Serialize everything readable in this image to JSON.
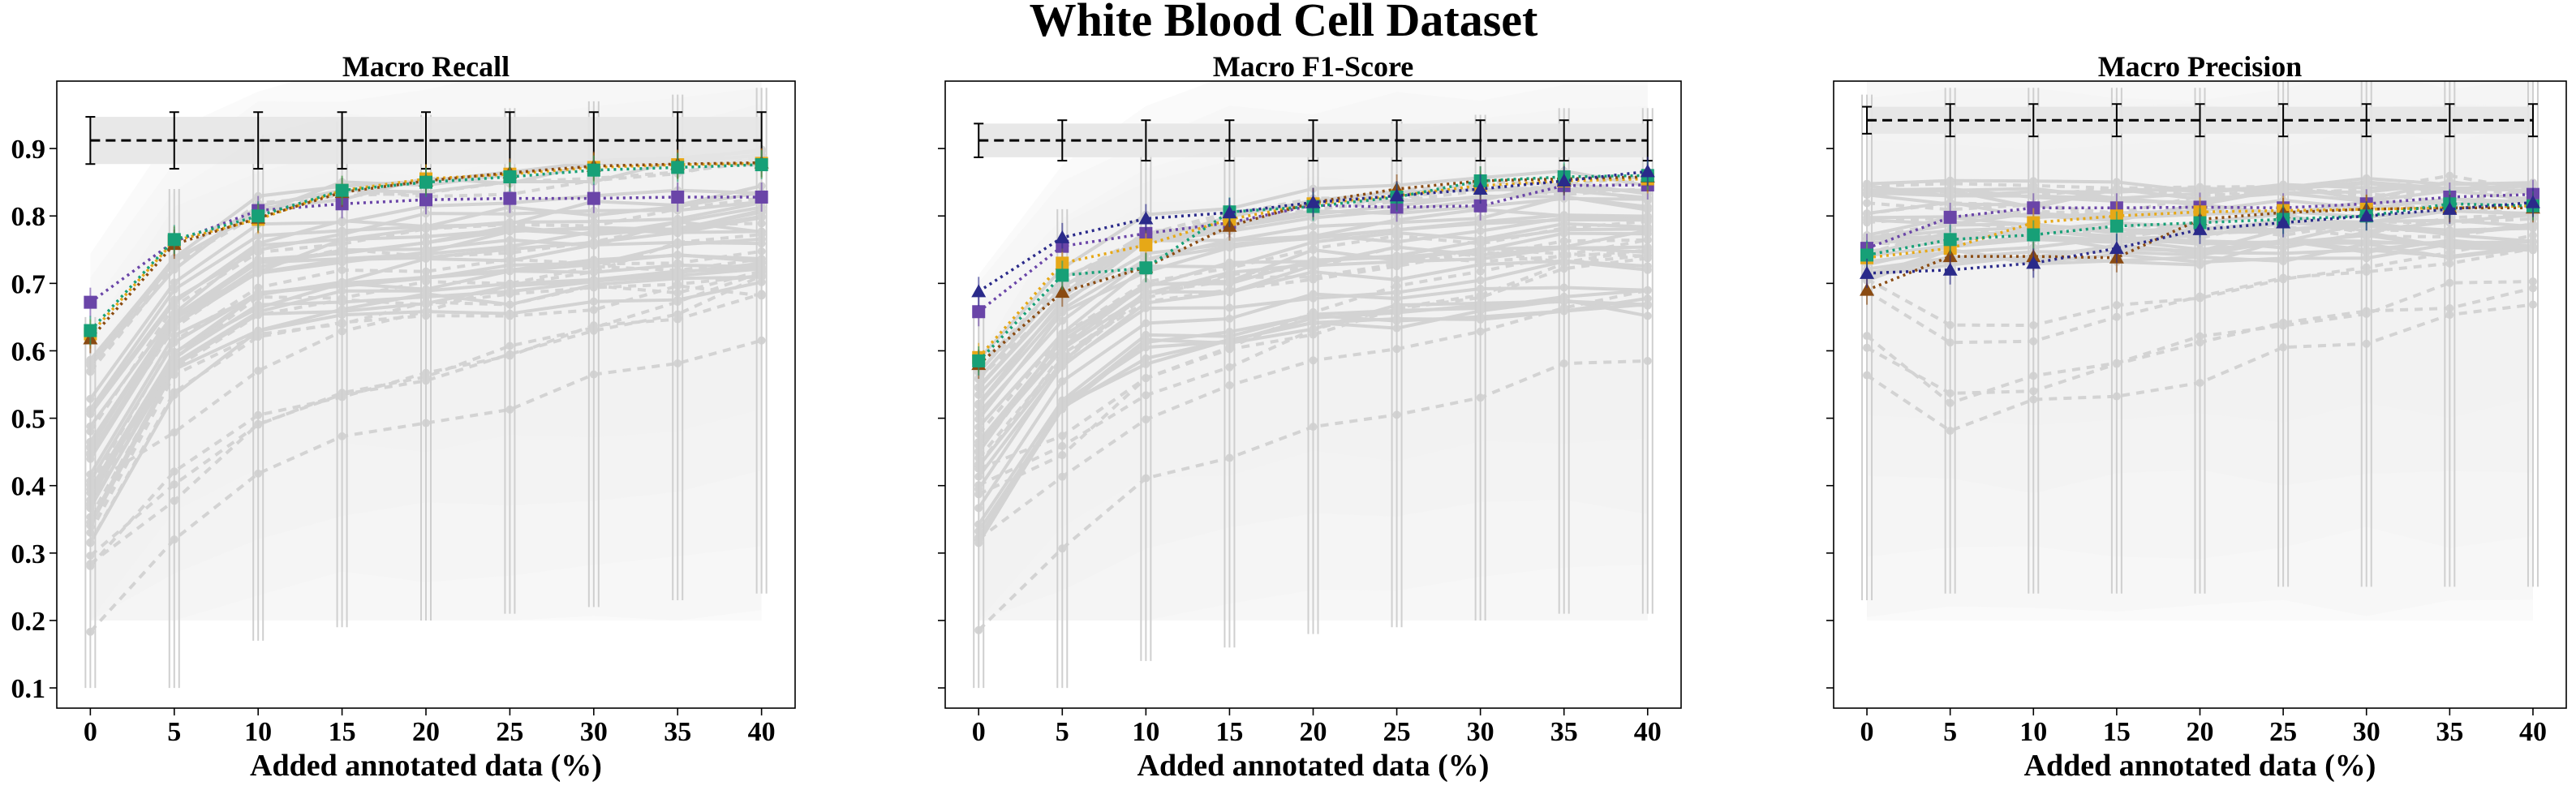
{
  "figure": {
    "title": "White Blood Cell Dataset"
  },
  "chart_data": [
    {
      "type": "line",
      "title": "Macro Recall",
      "xlabel": "Added annotated data (%)",
      "ylabel": "",
      "x": [
        0,
        5,
        10,
        15,
        20,
        25,
        30,
        35,
        40
      ],
      "x_ticks": [
        "0",
        "5",
        "10",
        "15",
        "20",
        "25",
        "30",
        "35",
        "40"
      ],
      "ylim": [
        0.07,
        1.0
      ],
      "y_ticks": [
        "0.1",
        "0.2",
        "0.3",
        "0.4",
        "0.5",
        "0.6",
        "0.7",
        "0.8",
        "0.9"
      ],
      "show_y_tick_labels": true,
      "reference": {
        "value": 0.912,
        "error": 0.035
      },
      "series": [
        {
          "color": "#6a45a8",
          "marker": "square",
          "values": [
            0.672,
            0.762,
            0.808,
            0.818,
            0.824,
            0.826,
            0.826,
            0.828,
            0.828
          ]
        },
        {
          "color": "#e6a817",
          "marker": "square",
          "values": [
            0.625,
            0.763,
            0.795,
            0.838,
            0.855,
            0.862,
            0.872,
            0.876,
            0.878
          ]
        },
        {
          "color": "#8a4b12",
          "marker": "triangle",
          "values": [
            0.618,
            0.758,
            0.797,
            0.835,
            0.852,
            0.864,
            0.874,
            0.877,
            0.879
          ]
        },
        {
          "color": "#17a077",
          "marker": "square",
          "values": [
            0.63,
            0.765,
            0.8,
            0.838,
            0.85,
            0.858,
            0.868,
            0.872,
            0.876
          ]
        }
      ]
    },
    {
      "type": "line",
      "title": "Macro F1-Score",
      "xlabel": "Added annotated data (%)",
      "ylabel": "",
      "x": [
        0,
        5,
        10,
        15,
        20,
        25,
        30,
        35,
        40
      ],
      "x_ticks": [
        "0",
        "5",
        "10",
        "15",
        "20",
        "25",
        "30",
        "35",
        "40"
      ],
      "ylim": [
        0.07,
        1.0
      ],
      "y_ticks": [],
      "show_y_tick_labels": false,
      "reference": {
        "value": 0.912,
        "error": 0.025
      },
      "series": [
        {
          "color": "#6a45a8",
          "marker": "square",
          "values": [
            0.658,
            0.755,
            0.774,
            0.79,
            0.816,
            0.813,
            0.815,
            0.845,
            0.846
          ]
        },
        {
          "color": "#e6a817",
          "marker": "square",
          "values": [
            0.59,
            0.73,
            0.757,
            0.795,
            0.818,
            0.83,
            0.845,
            0.852,
            0.855
          ]
        },
        {
          "color": "#8a4b12",
          "marker": "triangle",
          "values": [
            0.58,
            0.687,
            0.724,
            0.785,
            0.82,
            0.84,
            0.852,
            0.855,
            0.858
          ]
        },
        {
          "color": "#17a077",
          "marker": "square",
          "values": [
            0.585,
            0.712,
            0.723,
            0.806,
            0.814,
            0.828,
            0.852,
            0.858,
            0.86
          ]
        },
        {
          "color": "#2a2a8a",
          "marker": "triangle",
          "values": [
            0.688,
            0.768,
            0.796,
            0.805,
            0.82,
            0.83,
            0.84,
            0.852,
            0.866
          ]
        }
      ]
    },
    {
      "type": "line",
      "title": "Macro Precision",
      "xlabel": "Added annotated data (%)",
      "ylabel": "",
      "x": [
        0,
        5,
        10,
        15,
        20,
        25,
        30,
        35,
        40
      ],
      "x_ticks": [
        "0",
        "5",
        "10",
        "15",
        "20",
        "25",
        "30",
        "35",
        "40"
      ],
      "ylim": [
        0.07,
        1.0
      ],
      "y_ticks": [],
      "show_y_tick_labels": false,
      "reference": {
        "value": 0.942,
        "error": 0.02
      },
      "series": [
        {
          "color": "#6a45a8",
          "marker": "square",
          "values": [
            0.752,
            0.798,
            0.812,
            0.812,
            0.813,
            0.812,
            0.818,
            0.828,
            0.832
          ]
        },
        {
          "color": "#e6a817",
          "marker": "square",
          "values": [
            0.738,
            0.752,
            0.79,
            0.8,
            0.806,
            0.808,
            0.81,
            0.812,
            0.815
          ]
        },
        {
          "color": "#8a4b12",
          "marker": "triangle",
          "values": [
            0.69,
            0.74,
            0.74,
            0.738,
            0.795,
            0.805,
            0.81,
            0.812,
            0.812
          ]
        },
        {
          "color": "#17a077",
          "marker": "square",
          "values": [
            0.742,
            0.765,
            0.772,
            0.785,
            0.79,
            0.795,
            0.8,
            0.818,
            0.815
          ]
        },
        {
          "color": "#2a2a8a",
          "marker": "triangle",
          "values": [
            0.715,
            0.72,
            0.73,
            0.752,
            0.78,
            0.79,
            0.8,
            0.81,
            0.82
          ]
        }
      ]
    }
  ]
}
